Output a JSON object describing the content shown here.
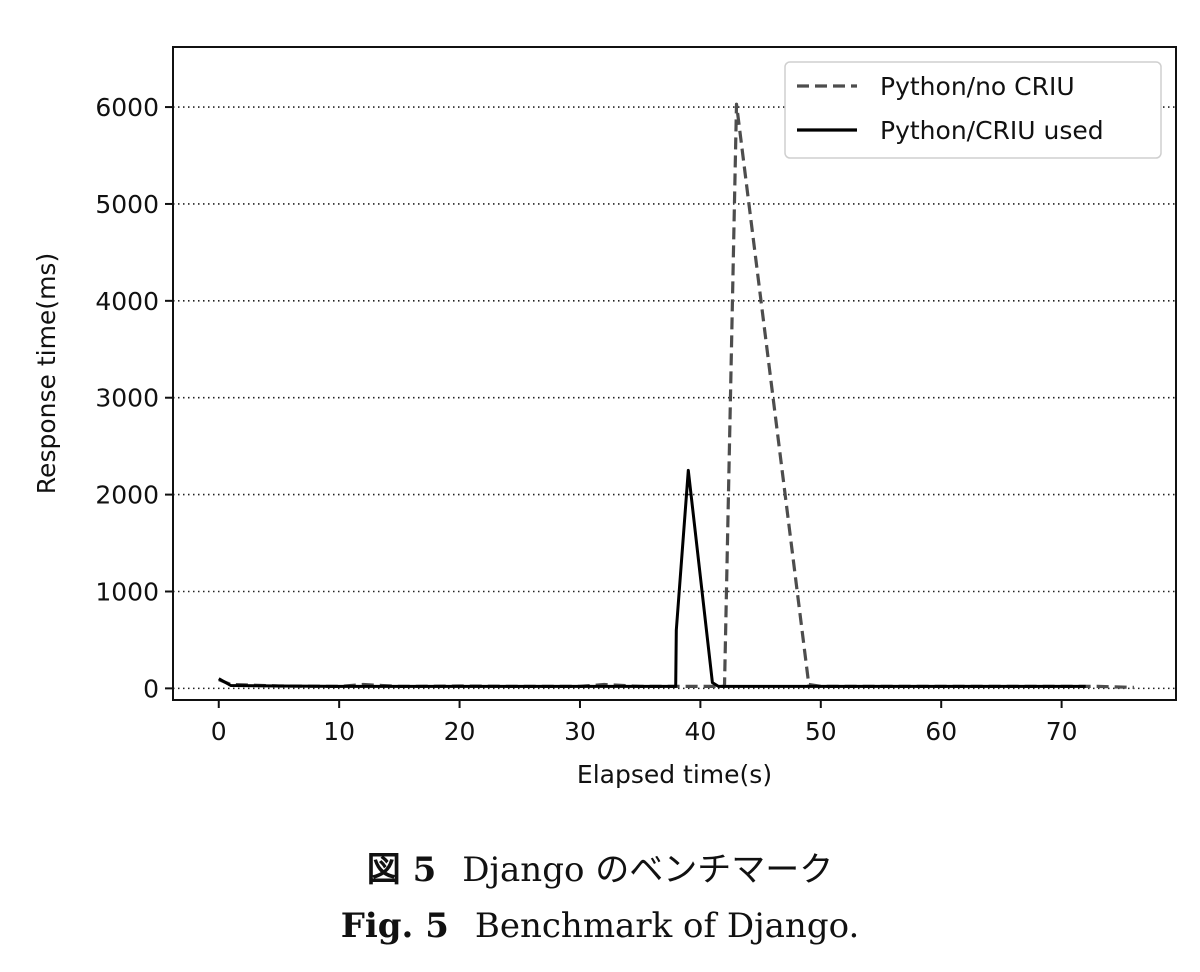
{
  "chart_data": {
    "type": "line",
    "xlabel": "Elapsed time(s)",
    "ylabel": "Response time(ms)",
    "xlim": [
      -3.8,
      79.5
    ],
    "ylim": [
      -120,
      6620
    ],
    "xticks": [
      0,
      10,
      20,
      30,
      40,
      50,
      60,
      70
    ],
    "yticks": [
      0,
      1000,
      2000,
      3000,
      4000,
      5000,
      6000
    ],
    "grid": "y-dotted",
    "legend_position": "top-right",
    "series": [
      {
        "name": "Python/no CRIU",
        "style": "dashed",
        "color": "#4d4d4d",
        "points": [
          [
            0,
            90
          ],
          [
            1,
            40
          ],
          [
            5,
            25
          ],
          [
            10,
            20
          ],
          [
            12,
            40
          ],
          [
            15,
            20
          ],
          [
            20,
            25
          ],
          [
            25,
            20
          ],
          [
            30,
            20
          ],
          [
            32,
            40
          ],
          [
            35,
            20
          ],
          [
            38,
            20
          ],
          [
            40,
            20
          ],
          [
            42,
            20
          ],
          [
            43,
            6030
          ],
          [
            49,
            40
          ],
          [
            50,
            20
          ],
          [
            55,
            20
          ],
          [
            60,
            20
          ],
          [
            65,
            20
          ],
          [
            70,
            20
          ],
          [
            73,
            20
          ],
          [
            76,
            10
          ]
        ]
      },
      {
        "name": "Python/CRIU used",
        "style": "solid",
        "color": "#000000",
        "points": [
          [
            0,
            100
          ],
          [
            1,
            30
          ],
          [
            5,
            25
          ],
          [
            10,
            20
          ],
          [
            15,
            20
          ],
          [
            20,
            20
          ],
          [
            25,
            20
          ],
          [
            30,
            20
          ],
          [
            35,
            20
          ],
          [
            37.8,
            20
          ],
          [
            37.95,
            20
          ],
          [
            38,
            600
          ],
          [
            39,
            2250
          ],
          [
            41,
            60
          ],
          [
            41.5,
            20
          ],
          [
            45,
            20
          ],
          [
            50,
            20
          ],
          [
            55,
            20
          ],
          [
            60,
            20
          ],
          [
            65,
            20
          ],
          [
            70,
            20
          ],
          [
            72,
            20
          ]
        ]
      }
    ]
  },
  "caption": {
    "jp_tag": "図 5",
    "jp_text": "Django のベンチマーク",
    "en_tag": "Fig. 5",
    "en_text": "Benchmark of Django."
  }
}
